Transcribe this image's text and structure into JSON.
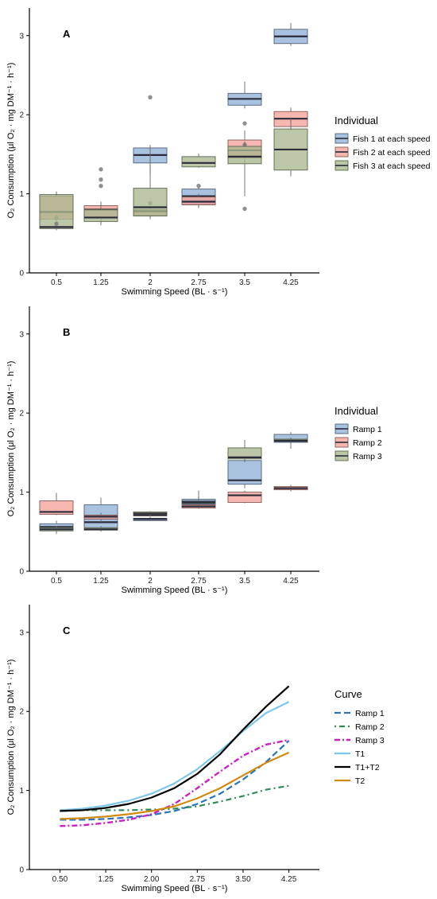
{
  "chart_data": [
    {
      "panel": "A",
      "type": "boxplot",
      "xlabel": "Swimming Speed (BL · s⁻¹)",
      "ylabel": "O₂ Consumption (μl O₂ · mg DM⁻¹ · h⁻¹)",
      "categories": [
        "0.5",
        "1.25",
        "2",
        "2.75",
        "3.5",
        "4.25"
      ],
      "ylim": [
        0,
        3.35
      ],
      "yticks": [
        0,
        1,
        2,
        3
      ],
      "legend_title": "Individual",
      "legend_placement": "right",
      "series": [
        {
          "name": "Fish 1 at each speed",
          "color": "#8fb1d6",
          "boxes": [
            null,
            null,
            {
              "min": 1.25,
              "q1": 1.39,
              "median": 1.49,
              "q3": 1.58,
              "max": 1.62,
              "outliers": [
                2.22,
                0.88
              ]
            },
            {
              "min": 0.82,
              "q1": 0.87,
              "median": 0.97,
              "q3": 1.06,
              "max": 1.08,
              "outliers": [
                1.1
              ]
            },
            {
              "min": 2.08,
              "q1": 2.12,
              "median": 2.2,
              "q3": 2.27,
              "max": 2.42,
              "outliers": [
                1.89
              ]
            },
            {
              "min": 2.87,
              "q1": 2.9,
              "median": 2.99,
              "q3": 3.08,
              "max": 3.16,
              "outliers": []
            }
          ]
        },
        {
          "name": "Fish 2 at each speed",
          "color": "#f4a39a",
          "boxes": [
            {
              "min": 0.6,
              "q1": 0.68,
              "median": 0.77,
              "q3": 0.97,
              "max": 1.02,
              "outliers": [
                0.7
              ]
            },
            {
              "min": 0.62,
              "q1": 0.7,
              "median": 0.8,
              "q3": 0.85,
              "max": 0.87,
              "outliers": [
                1.31,
                1.18,
                1.1
              ]
            },
            {
              "min": 0.7,
              "q1": 0.73,
              "median": 0.78,
              "q3": 0.8,
              "max": 0.82,
              "outliers": []
            },
            {
              "min": 0.82,
              "q1": 0.86,
              "median": 0.9,
              "q3": 0.96,
              "max": 1.0,
              "outliers": []
            },
            {
              "min": 1.38,
              "q1": 1.45,
              "median": 1.55,
              "q3": 1.68,
              "max": 1.8,
              "outliers": [
                1.62
              ]
            },
            {
              "min": 1.8,
              "q1": 1.85,
              "median": 1.95,
              "q3": 2.04,
              "max": 2.09,
              "outliers": []
            }
          ]
        },
        {
          "name": "Fish 3 at each speed",
          "color": "#a8b78e",
          "boxes": [
            {
              "min": 0.54,
              "q1": 0.56,
              "median": 0.58,
              "q3": 0.99,
              "max": 1.03,
              "outliers": [
                0.62
              ]
            },
            {
              "min": 0.6,
              "q1": 0.65,
              "median": 0.7,
              "q3": 0.8,
              "max": 0.9,
              "outliers": []
            },
            {
              "min": 0.68,
              "q1": 0.72,
              "median": 0.83,
              "q3": 1.07,
              "max": 1.58,
              "outliers": []
            },
            {
              "min": 1.33,
              "q1": 1.34,
              "median": 1.39,
              "q3": 1.47,
              "max": 1.51,
              "outliers": []
            },
            {
              "min": 0.97,
              "q1": 1.38,
              "median": 1.47,
              "q3": 1.6,
              "max": 1.66,
              "outliers": [
                0.81
              ]
            },
            {
              "min": 1.22,
              "q1": 1.3,
              "median": 1.56,
              "q3": 1.82,
              "max": 1.95,
              "outliers": []
            }
          ]
        }
      ]
    },
    {
      "panel": "B",
      "type": "boxplot",
      "xlabel": "Swimming Speed (BL · s⁻¹)",
      "ylabel": "O₂ Consumption (μl O₂ · mg DM⁻¹ · h⁻¹)",
      "categories": [
        "0.5",
        "1.25",
        "2",
        "2.75",
        "3.5",
        "4.25"
      ],
      "ylim": [
        0,
        3.35
      ],
      "yticks": [
        0,
        1,
        2,
        3
      ],
      "legend_title": "Individual",
      "legend_placement": "right",
      "series": [
        {
          "name": "Ramp 1",
          "color": "#8fb1d6",
          "boxes": [
            {
              "min": 0.47,
              "q1": 0.52,
              "median": 0.56,
              "q3": 0.6,
              "max": 0.64
            },
            {
              "min": 0.53,
              "q1": 0.55,
              "median": 0.62,
              "q3": 0.84,
              "max": 0.93
            },
            {
              "min": 0.64,
              "q1": 0.64,
              "median": 0.66,
              "q3": 0.67,
              "max": 0.69
            },
            {
              "min": 0.83,
              "q1": 0.85,
              "median": 0.88,
              "q3": 0.91,
              "max": 0.94
            },
            {
              "min": 1.05,
              "q1": 1.1,
              "median": 1.15,
              "q3": 1.4,
              "max": 1.45
            },
            {
              "min": 1.55,
              "q1": 1.63,
              "median": 1.66,
              "q3": 1.73,
              "max": 1.76
            }
          ]
        },
        {
          "name": "Ramp 2",
          "color": "#f4a39a",
          "boxes": [
            {
              "min": 0.71,
              "q1": 0.72,
              "median": 0.75,
              "q3": 0.89,
              "max": 0.99
            },
            {
              "min": 0.62,
              "q1": 0.66,
              "median": 0.69,
              "q3": 0.71,
              "max": 0.74
            },
            {
              "min": 0.7,
              "q1": 0.7,
              "median": 0.71,
              "q3": 0.73,
              "max": 0.74
            },
            {
              "min": 0.79,
              "q1": 0.8,
              "median": 0.82,
              "q3": 0.84,
              "max": 1.02
            },
            {
              "min": 0.86,
              "q1": 0.87,
              "median": 0.96,
              "q3": 1.0,
              "max": 1.02
            },
            {
              "min": 1.01,
              "q1": 1.03,
              "median": 1.05,
              "q3": 1.07,
              "max": 1.09
            }
          ]
        },
        {
          "name": "Ramp 3",
          "color": "#a8b78e",
          "boxes": [
            {
              "min": 0.49,
              "q1": 0.51,
              "median": 0.53,
              "q3": 0.55,
              "max": 0.57
            },
            {
              "min": 0.5,
              "q1": 0.52,
              "median": 0.53,
              "q3": 0.55,
              "max": 0.57
            },
            {
              "min": 0.7,
              "q1": 0.72,
              "median": 0.73,
              "q3": 0.75,
              "max": 0.76
            },
            {
              "min": 0.85,
              "q1": 0.86,
              "median": 0.87,
              "q3": 0.88,
              "max": 0.89
            },
            {
              "min": 1.38,
              "q1": 1.42,
              "median": 1.44,
              "q3": 1.56,
              "max": 1.66
            },
            {
              "min": 1.62,
              "q1": 1.64,
              "median": 1.65,
              "q3": 1.67,
              "max": 1.69
            }
          ]
        }
      ]
    },
    {
      "panel": "C",
      "type": "line",
      "xlabel": "Swimming Speed (BL · s⁻¹)",
      "ylabel": "O₂ Consumption (μl O₂ · mg DM⁻¹ · h⁻¹)",
      "x": [
        0.5,
        0.875,
        1.25,
        1.625,
        2.0,
        2.375,
        2.75,
        3.125,
        3.5,
        3.875,
        4.25
      ],
      "xticks": [
        "0.50",
        "1.25",
        "2.00",
        "2.75",
        "3.50",
        "4.25"
      ],
      "xlim": [
        0.0,
        4.75
      ],
      "ylim": [
        0,
        3.35
      ],
      "yticks": [
        0,
        1,
        2,
        3
      ],
      "legend_title": "Curve",
      "legend_placement": "right",
      "series": [
        {
          "name": "Ramp 1",
          "color": "#2a74b8",
          "dash": "8,4",
          "width": 2.2,
          "values": [
            0.63,
            0.63,
            0.64,
            0.66,
            0.69,
            0.74,
            0.83,
            0.96,
            1.14,
            1.36,
            1.63
          ]
        },
        {
          "name": "Ramp 2",
          "color": "#2e8b57",
          "dash": "2,4,7,4",
          "width": 2.2,
          "values": [
            0.74,
            0.75,
            0.75,
            0.75,
            0.76,
            0.77,
            0.8,
            0.86,
            0.93,
            1.01,
            1.06
          ]
        },
        {
          "name": "Ramp 3",
          "color": "#cc1fc4",
          "dash": "7,3,2,3",
          "width": 2.4,
          "values": [
            0.55,
            0.56,
            0.59,
            0.63,
            0.7,
            0.83,
            1.03,
            1.24,
            1.44,
            1.58,
            1.64
          ]
        },
        {
          "name": "T1",
          "color": "#7fc6ea",
          "dash": "",
          "width": 2.2,
          "values": [
            0.75,
            0.77,
            0.81,
            0.87,
            0.96,
            1.09,
            1.27,
            1.5,
            1.75,
            1.98,
            2.12
          ]
        },
        {
          "name": "T1+T2",
          "color": "#000000",
          "dash": "",
          "width": 2.2,
          "values": [
            0.74,
            0.75,
            0.78,
            0.83,
            0.91,
            1.03,
            1.21,
            1.46,
            1.77,
            2.06,
            2.32
          ]
        },
        {
          "name": "T2",
          "color": "#d18a0e",
          "dash": "",
          "width": 2.2,
          "values": [
            0.64,
            0.65,
            0.67,
            0.7,
            0.74,
            0.8,
            0.9,
            1.03,
            1.19,
            1.35,
            1.48
          ]
        }
      ]
    }
  ]
}
